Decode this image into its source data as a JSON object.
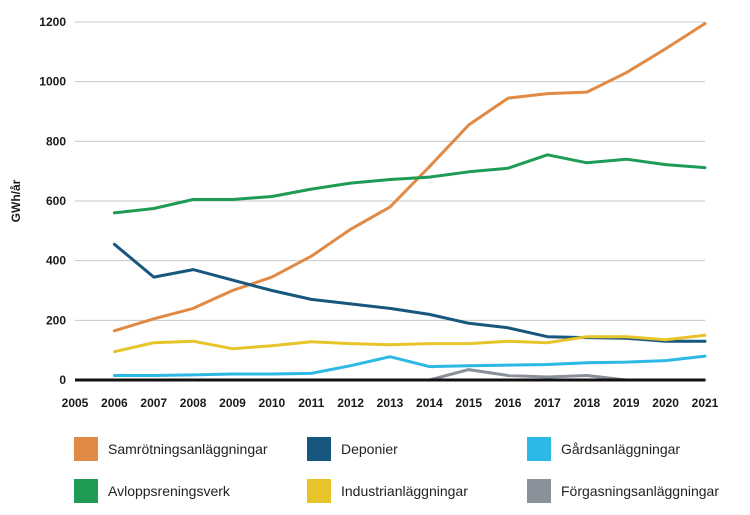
{
  "chart_data": {
    "type": "line",
    "title": "",
    "ylabel": "GWh/år",
    "xlabel": "",
    "ylim": [
      0,
      1200
    ],
    "yticks": [
      0,
      200,
      400,
      600,
      800,
      1000,
      1200
    ],
    "grid": "horizontal",
    "legend_position": "bottom",
    "x_tick_labels": [
      "2005",
      "2006",
      "2007",
      "2008",
      "2009",
      "2010",
      "2011",
      "2012",
      "2013",
      "2014",
      "2015",
      "2016",
      "2017",
      "2018",
      "2019",
      "2020",
      "2021"
    ],
    "x": [
      2006,
      2007,
      2008,
      2009,
      2010,
      2011,
      2012,
      2013,
      2014,
      2015,
      2016,
      2017,
      2018,
      2019,
      2020,
      2021
    ],
    "series": [
      {
        "name": "Samrötningsanläggningar",
        "color": "#E08A45",
        "values": [
          165,
          205,
          240,
          300,
          345,
          415,
          505,
          580,
          715,
          855,
          945,
          960,
          965,
          1030,
          1110,
          1195
        ]
      },
      {
        "name": "Deponier",
        "color": "#17577E",
        "values": [
          455,
          345,
          370,
          335,
          300,
          270,
          255,
          240,
          220,
          190,
          175,
          145,
          142,
          140,
          130,
          130
        ]
      },
      {
        "name": "Gårdsanläggningar",
        "color": "#2DB9E5",
        "values": [
          15,
          15,
          17,
          20,
          20,
          22,
          48,
          78,
          45,
          48,
          50,
          52,
          58,
          60,
          65,
          80
        ]
      },
      {
        "name": "Avloppsreningsverk",
        "color": "#1E9C55",
        "values": [
          560,
          575,
          605,
          605,
          615,
          640,
          660,
          672,
          680,
          698,
          710,
          755,
          728,
          740,
          722,
          712
        ]
      },
      {
        "name": "Industrianläggningar",
        "color": "#E6C42A",
        "values": [
          95,
          125,
          130,
          105,
          115,
          128,
          122,
          118,
          122,
          122,
          130,
          125,
          145,
          145,
          135,
          150
        ]
      },
      {
        "name": "Förgasningsanläggningar",
        "color": "#8A9099",
        "values": [
          0,
          0,
          0,
          0,
          0,
          0,
          0,
          0,
          0,
          35,
          15,
          10,
          15,
          0,
          0,
          0
        ]
      }
    ]
  }
}
